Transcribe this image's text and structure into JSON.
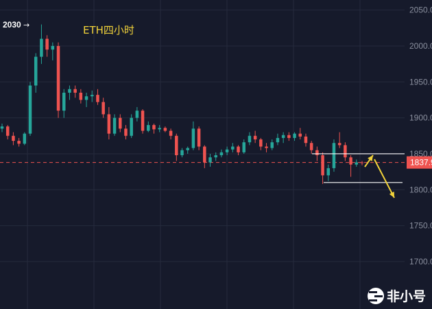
{
  "chart_data": {
    "type": "candlestick",
    "title": "ETH四小时",
    "y_axis": {
      "ticks": [
        "2050.00",
        "2000.00",
        "1950.00",
        "1900.00",
        "1850.00",
        "1800.00",
        "1750.00",
        "1700.00"
      ],
      "tick_values": [
        2050,
        2000,
        1950,
        1900,
        1850,
        1800,
        1750,
        1700
      ],
      "range": [
        1634,
        2064
      ],
      "position": "right"
    },
    "grid": true,
    "high_marker": {
      "label": "2030",
      "value": 2030
    },
    "last_price": {
      "label": "1837.9",
      "value": 1837.9
    },
    "support_resistance_lines": [
      1850,
      1810
    ],
    "candles_ohlc": [
      [
        1885,
        1892,
        1880,
        1888
      ],
      [
        1888,
        1890,
        1870,
        1875
      ],
      [
        1875,
        1880,
        1862,
        1868
      ],
      [
        1868,
        1872,
        1860,
        1864
      ],
      [
        1864,
        1880,
        1862,
        1878
      ],
      [
        1878,
        1950,
        1875,
        1945
      ],
      [
        1945,
        1990,
        1935,
        1985
      ],
      [
        1985,
        2030,
        1975,
        2010
      ],
      [
        2010,
        2015,
        1985,
        1995
      ],
      [
        1995,
        2005,
        1980,
        2000
      ],
      [
        2000,
        2005,
        1900,
        1910
      ],
      [
        1910,
        1940,
        1900,
        1935
      ],
      [
        1935,
        1945,
        1925,
        1940
      ],
      [
        1940,
        1945,
        1928,
        1935
      ],
      [
        1935,
        1940,
        1920,
        1925
      ],
      [
        1925,
        1935,
        1915,
        1930
      ],
      [
        1930,
        1938,
        1922,
        1932
      ],
      [
        1932,
        1940,
        1918,
        1922
      ],
      [
        1922,
        1928,
        1900,
        1905
      ],
      [
        1905,
        1915,
        1870,
        1878
      ],
      [
        1878,
        1905,
        1875,
        1900
      ],
      [
        1900,
        1905,
        1880,
        1885
      ],
      [
        1885,
        1890,
        1870,
        1875
      ],
      [
        1875,
        1905,
        1872,
        1900
      ],
      [
        1900,
        1915,
        1895,
        1910
      ],
      [
        1910,
        1912,
        1878,
        1882
      ],
      [
        1882,
        1895,
        1880,
        1890
      ],
      [
        1890,
        1892,
        1878,
        1884
      ],
      [
        1884,
        1890,
        1880,
        1886
      ],
      [
        1886,
        1888,
        1880,
        1882
      ],
      [
        1882,
        1885,
        1870,
        1875
      ],
      [
        1875,
        1878,
        1840,
        1848
      ],
      [
        1848,
        1858,
        1845,
        1855
      ],
      [
        1855,
        1860,
        1850,
        1858
      ],
      [
        1858,
        1895,
        1855,
        1885
      ],
      [
        1885,
        1888,
        1855,
        1860
      ],
      [
        1860,
        1862,
        1830,
        1838
      ],
      [
        1838,
        1850,
        1832,
        1845
      ],
      [
        1845,
        1852,
        1840,
        1848
      ],
      [
        1848,
        1856,
        1845,
        1852
      ],
      [
        1852,
        1860,
        1848,
        1856
      ],
      [
        1856,
        1865,
        1852,
        1860
      ],
      [
        1860,
        1862,
        1848,
        1852
      ],
      [
        1852,
        1870,
        1850,
        1866
      ],
      [
        1866,
        1880,
        1862,
        1875
      ],
      [
        1875,
        1882,
        1865,
        1870
      ],
      [
        1870,
        1872,
        1855,
        1860
      ],
      [
        1860,
        1865,
        1852,
        1858
      ],
      [
        1858,
        1870,
        1855,
        1866
      ],
      [
        1866,
        1878,
        1862,
        1872
      ],
      [
        1872,
        1880,
        1865,
        1876
      ],
      [
        1876,
        1880,
        1868,
        1872
      ],
      [
        1872,
        1880,
        1868,
        1878
      ],
      [
        1878,
        1886,
        1870,
        1874
      ],
      [
        1874,
        1878,
        1860,
        1865
      ],
      [
        1865,
        1868,
        1850,
        1855
      ],
      [
        1855,
        1860,
        1840,
        1848
      ],
      [
        1848,
        1852,
        1808,
        1820
      ],
      [
        1820,
        1835,
        1812,
        1830
      ],
      [
        1830,
        1870,
        1825,
        1865
      ],
      [
        1865,
        1880,
        1858,
        1862
      ],
      [
        1862,
        1866,
        1840,
        1845
      ],
      [
        1845,
        1848,
        1818,
        1835
      ],
      [
        1835,
        1842,
        1832,
        1838
      ],
      [
        1838,
        1840,
        1834,
        1837.9
      ]
    ]
  },
  "watermark": {
    "text": "非小号"
  },
  "colors": {
    "background": "#161a2b",
    "grid": "#252a3d",
    "up": "#26a69a",
    "down": "#ef5350",
    "annotation": "#f2d33a",
    "price_tag": "#ef5350"
  }
}
